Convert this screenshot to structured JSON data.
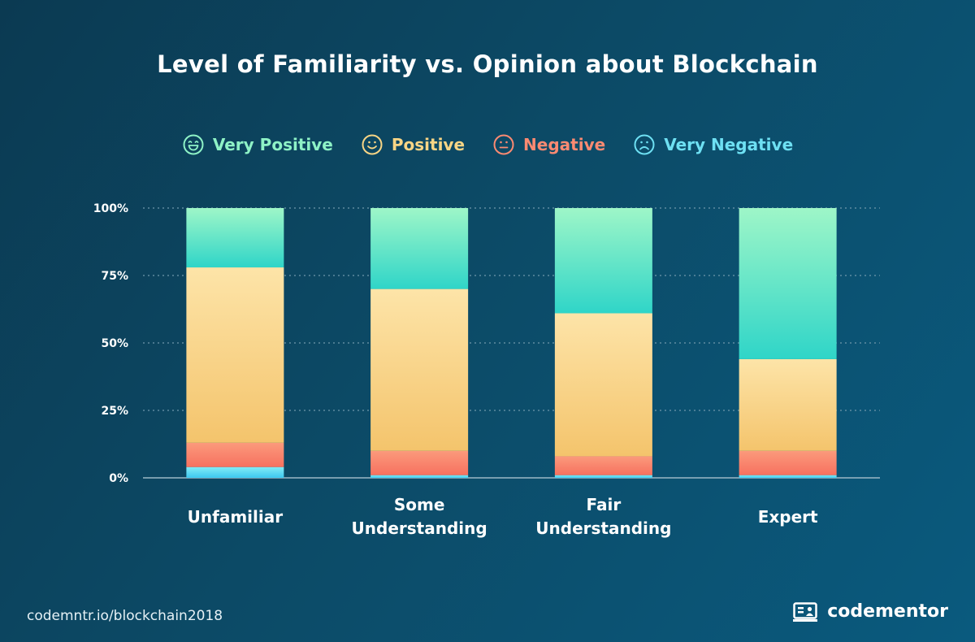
{
  "title": "Level of Familiarity vs. Opinion about Blockchain",
  "legend": [
    {
      "label": "Very Positive",
      "color": "#8ef2c6",
      "icon": "very-positive-face-icon"
    },
    {
      "label": "Positive",
      "color": "#f8d585",
      "icon": "positive-face-icon"
    },
    {
      "label": "Negative",
      "color": "#fb8a72",
      "icon": "negative-face-icon"
    },
    {
      "label": "Very Negative",
      "color": "#6ee0f3",
      "icon": "very-negative-face-icon"
    }
  ],
  "footer": {
    "url": "codemntr.io/blockchain2018",
    "brand": "codementor",
    "brand_icon": "codementor-logo-icon"
  },
  "chart_data": {
    "type": "bar",
    "stacked": true,
    "categories": [
      [
        "Unfamiliar"
      ],
      [
        "Some",
        "Understanding"
      ],
      [
        "Fair",
        "Understanding"
      ],
      [
        "Expert"
      ]
    ],
    "ylim": [
      0,
      100
    ],
    "yticks": [
      0,
      25,
      50,
      75,
      100
    ],
    "ytick_labels": [
      "0%",
      "25%",
      "50%",
      "75%",
      "100%"
    ],
    "grid": true,
    "series": [
      {
        "name": "Very Negative",
        "values": [
          4,
          1,
          1,
          1
        ]
      },
      {
        "name": "Negative",
        "values": [
          9,
          9,
          7,
          9
        ]
      },
      {
        "name": "Positive",
        "values": [
          65,
          60,
          53,
          34
        ]
      },
      {
        "name": "Very Positive",
        "values": [
          22,
          30,
          39,
          56
        ]
      }
    ]
  }
}
